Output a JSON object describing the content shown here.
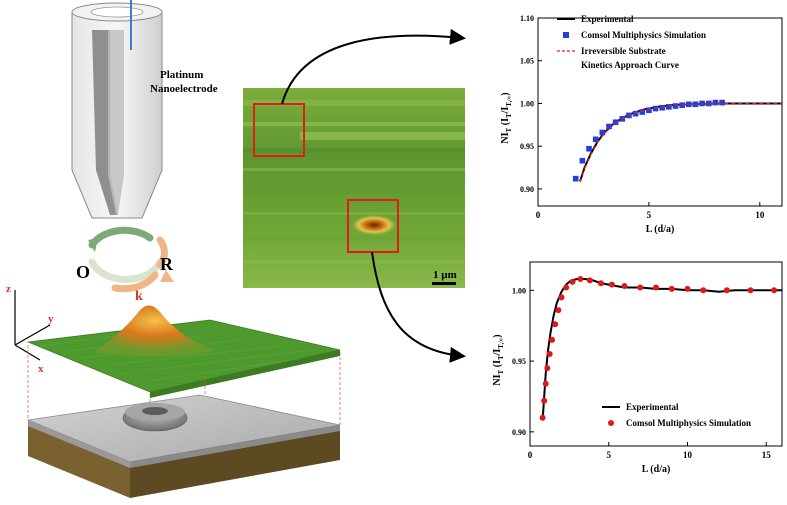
{
  "probe": {
    "label_line1": "Platinum",
    "label_line2": "Nanoelectrode"
  },
  "redox": {
    "oxidized": "O",
    "reduced": "R",
    "rate": "k",
    "colors": {
      "arrow_left": "#7fa878",
      "arrow_right": "#f0b68a",
      "rate": "#d43a2a",
      "peak": "#e07a1a",
      "surface": "#4f9a2e"
    }
  },
  "axes3d": {
    "x": "x",
    "y": "y",
    "z": "z"
  },
  "afm_image": {
    "scale_bar": "1 µm"
  },
  "chart_data": [
    {
      "type": "scatter",
      "panel": "top",
      "xlabel": "L (d/a)",
      "ylabel": "NI",
      "ylabel_sub": "T",
      "ylabel_paren": " (I",
      "ylabel_paren_sub": "T",
      "ylabel_slash": "/I",
      "ylabel_slash_sub": "T,∞",
      "ylabel_close": ")",
      "xlim": [
        0,
        11
      ],
      "ylim": [
        0.88,
        1.1
      ],
      "xticks": [
        0,
        5,
        10
      ],
      "xtick_labels": [
        "0",
        "5",
        "10"
      ],
      "yticks": [
        0.9,
        0.95,
        1.0,
        1.05,
        1.1
      ],
      "ytick_labels": [
        "0.90",
        "0.95",
        "1.00",
        "1.05",
        "1.10"
      ],
      "legend": [
        "Experimental",
        "Comsol Multiphysics Simulation",
        "Irreversible Substrate",
        "Kinetics Approach Curve"
      ],
      "series": [
        {
          "name": "Experimental",
          "kind": "line",
          "color": "#000000",
          "x": [
            1.9,
            2.1,
            2.4,
            2.7,
            3.0,
            3.4,
            3.8,
            4.3,
            4.8,
            5.4,
            6.0,
            7.0,
            8.0,
            9.0,
            10.0,
            11.0
          ],
          "y": [
            0.909,
            0.925,
            0.942,
            0.956,
            0.966,
            0.976,
            0.983,
            0.989,
            0.993,
            0.996,
            0.998,
            0.999,
            1.0,
            1.0,
            1.0,
            1.0
          ]
        },
        {
          "name": "Comsol Multiphysics Simulation",
          "kind": "markers",
          "marker": "square",
          "color": "#1f3fe0",
          "x": [
            1.7,
            2.0,
            2.3,
            2.6,
            2.9,
            3.2,
            3.5,
            3.8,
            4.1,
            4.4,
            4.7,
            5.0,
            5.3,
            5.6,
            5.9,
            6.2,
            6.5,
            6.8,
            7.1,
            7.4,
            7.7,
            8.0,
            8.3
          ],
          "y": [
            0.912,
            0.933,
            0.947,
            0.958,
            0.966,
            0.973,
            0.978,
            0.982,
            0.986,
            0.988,
            0.99,
            0.992,
            0.994,
            0.995,
            0.996,
            0.997,
            0.998,
            0.999,
            0.999,
            1.0,
            1.0,
            1.001,
            1.001
          ]
        },
        {
          "name": "Irreversible Substrate Kinetics Approach Curve",
          "kind": "dashed",
          "color": "#e02020",
          "x": [
            1.9,
            2.1,
            2.4,
            2.7,
            3.0,
            3.4,
            3.8,
            4.3,
            4.8,
            5.4,
            6.0,
            7.0,
            8.0,
            9.0,
            10.0,
            11.0
          ],
          "y": [
            0.908,
            0.924,
            0.941,
            0.955,
            0.965,
            0.975,
            0.982,
            0.988,
            0.992,
            0.995,
            0.997,
            0.999,
            1.0,
            1.0,
            1.0,
            1.0
          ]
        }
      ]
    },
    {
      "type": "scatter",
      "panel": "bottom",
      "xlabel": "L (d/a)",
      "ylabel": "NI",
      "ylabel_sub": "T",
      "ylabel_paren": " (I",
      "ylabel_paren_sub": "T",
      "ylabel_slash": "/I",
      "ylabel_slash_sub": "T,∞",
      "ylabel_close": ")",
      "xlim": [
        0,
        16
      ],
      "ylim": [
        0.89,
        1.02
      ],
      "xticks": [
        0,
        5,
        10,
        15
      ],
      "xtick_labels": [
        "0",
        "5",
        "10",
        "15"
      ],
      "yticks": [
        0.9,
        0.95,
        1.0
      ],
      "ytick_labels": [
        "0.90",
        "0.95",
        "1.00"
      ],
      "legend": [
        "Experimental",
        "Comsol Multiphysics Simulation"
      ],
      "series": [
        {
          "name": "Experimental",
          "kind": "line",
          "color": "#000000",
          "x": [
            0.8,
            0.9,
            1.0,
            1.15,
            1.3,
            1.5,
            1.7,
            2.0,
            2.3,
            2.6,
            3.0,
            3.5,
            4.0,
            4.5,
            5.0,
            5.5,
            6.0,
            7.0,
            8.0,
            9.0,
            10.0,
            11.0,
            12.0,
            13.0,
            14.0,
            15.0,
            16.0
          ],
          "y": [
            0.908,
            0.925,
            0.942,
            0.958,
            0.97,
            0.982,
            0.991,
            0.999,
            1.004,
            1.007,
            1.008,
            1.008,
            1.007,
            1.005,
            1.004,
            1.003,
            1.002,
            1.002,
            1.001,
            1.001,
            1.0,
            1.0,
            0.999,
            1.0,
            1.0,
            1.0,
            1.0
          ]
        },
        {
          "name": "Comsol Multiphysics Simulation",
          "kind": "markers",
          "marker": "circle",
          "color": "#e01818",
          "x": [
            0.8,
            0.9,
            1.0,
            1.1,
            1.25,
            1.4,
            1.6,
            1.8,
            2.0,
            2.3,
            2.7,
            3.2,
            3.8,
            4.5,
            5.2,
            6.0,
            7.0,
            8.0,
            9.0,
            10.0,
            11.0,
            12.5,
            14.0,
            15.5
          ],
          "y": [
            0.91,
            0.922,
            0.934,
            0.945,
            0.955,
            0.965,
            0.976,
            0.986,
            0.995,
            1.002,
            1.006,
            1.008,
            1.007,
            1.005,
            1.004,
            1.003,
            1.002,
            1.002,
            1.001,
            1.001,
            1.0,
            1.0,
            1.0,
            1.0
          ]
        }
      ]
    }
  ]
}
